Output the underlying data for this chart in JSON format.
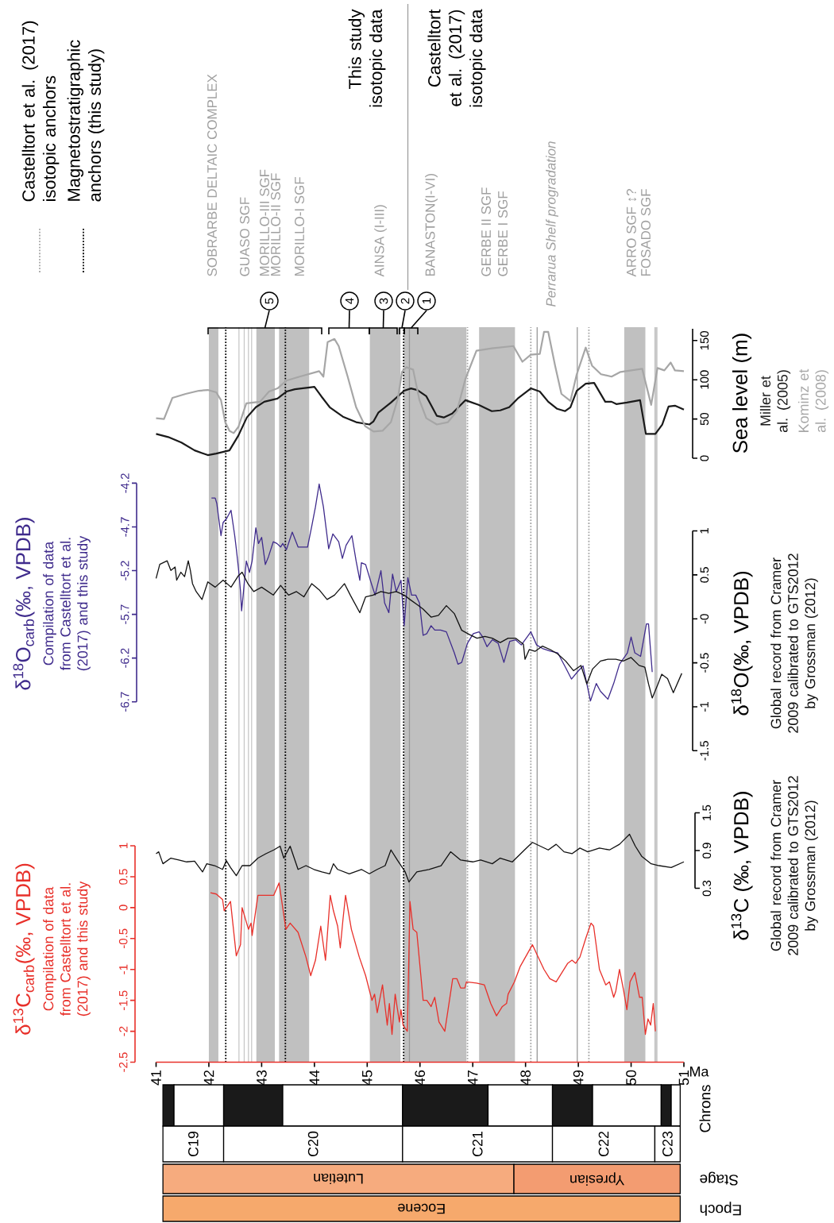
{
  "chart_data": [
    {
      "type": "line",
      "ylabel": "Sea level (m)",
      "xlim": [
        41,
        51
      ],
      "ylim": [
        0,
        165
      ],
      "yticks": [
        0,
        50,
        100,
        150
      ],
      "tick_labels": "y",
      "series": [
        {
          "name": "Miller et al. (2005)",
          "color": "#1a1a1a",
          "x": [
            41.0,
            41.23,
            41.48,
            41.73,
            41.98,
            42.14,
            42.39,
            42.56,
            42.72,
            42.89,
            43.05,
            43.3,
            43.47,
            43.63,
            44.0,
            44.13,
            44.29,
            44.54,
            44.79,
            45.04,
            45.12,
            45.21,
            45.45,
            45.7,
            45.83,
            45.95,
            46.12,
            46.32,
            46.45,
            46.61,
            46.86,
            47.11,
            47.36,
            47.52,
            47.69,
            47.85,
            48.1,
            48.27,
            48.43,
            48.6,
            48.75,
            48.85,
            48.97,
            49.14,
            49.3,
            49.51,
            49.63,
            49.72,
            49.92,
            50.17,
            50.28,
            50.46,
            50.59,
            50.71,
            50.83,
            51.0
          ],
          "values": [
            31,
            27,
            20,
            10,
            4,
            6,
            10,
            29,
            52,
            65,
            72,
            76,
            85,
            88,
            91,
            79,
            65,
            53,
            46,
            43,
            47,
            58,
            71,
            86,
            89,
            87,
            79,
            54,
            52,
            57,
            74,
            68,
            60,
            61,
            65,
            76,
            89,
            85,
            72,
            63,
            60,
            65,
            86,
            95,
            96,
            72,
            72,
            69,
            71,
            74,
            31,
            31,
            43,
            66,
            67,
            62
          ]
        },
        {
          "name": "Kominz et al. (2008)",
          "color": "#a6a6a6",
          "x": [
            41.0,
            41.15,
            41.31,
            41.56,
            41.81,
            41.98,
            42.14,
            42.23,
            42.31,
            42.39,
            42.47,
            42.56,
            42.71,
            42.97,
            43.14,
            43.3,
            43.47,
            43.72,
            44.09,
            44.17,
            44.25,
            44.38,
            44.46,
            44.63,
            44.79,
            44.96,
            45.12,
            45.29,
            45.45,
            45.58,
            45.66,
            45.74,
            45.87,
            45.99,
            46.12,
            46.32,
            46.53,
            46.7,
            46.86,
            47.07,
            47.36,
            47.77,
            47.94,
            48.1,
            48.27,
            48.35,
            48.43,
            48.56,
            48.68,
            48.85,
            48.97,
            49.14,
            49.26,
            49.43,
            49.63,
            49.8,
            50.21,
            50.38,
            50.5,
            50.63,
            50.75,
            50.83,
            51.0
          ],
          "values": [
            51,
            50,
            77,
            82,
            86,
            87,
            84,
            74,
            46,
            35,
            32,
            40,
            70,
            72,
            85,
            89,
            99,
            104,
            111,
            104,
            148,
            152,
            143,
            104,
            65,
            41,
            34,
            35,
            46,
            76,
            110,
            116,
            113,
            74,
            51,
            43,
            46,
            60,
            101,
            137,
            140,
            143,
            123,
            132,
            133,
            161,
            161,
            118,
            82,
            73,
            107,
            141,
            118,
            107,
            104,
            110,
            114,
            68,
            115,
            112,
            122,
            112,
            111
          ]
        }
      ],
      "bands": [
        {
          "axis": "x",
          "from": 42.0,
          "to": 42.18,
          "color": "#c0c0c0"
        },
        {
          "axis": "x",
          "from": 42.9,
          "to": 43.25,
          "color": "#c0c0c0"
        },
        {
          "axis": "x",
          "from": 43.33,
          "to": 43.9,
          "color": "#c0c0c0"
        },
        {
          "axis": "x",
          "from": 45.05,
          "to": 45.63,
          "color": "#c0c0c0"
        },
        {
          "axis": "x",
          "from": 45.7,
          "to": 46.88,
          "color": "#c0c0c0"
        },
        {
          "axis": "x",
          "from": 47.12,
          "to": 47.8,
          "color": "#c0c0c0"
        },
        {
          "axis": "x",
          "from": 49.87,
          "to": 50.27,
          "color": "#c0c0c0"
        },
        {
          "axis": "x",
          "from": 50.44,
          "to": 50.5,
          "color": "#c8c8c8"
        }
      ],
      "ref_lines": [
        {
          "axis": "x",
          "value": 42.32,
          "color": "#000000",
          "line_style": "dotted"
        },
        {
          "axis": "x",
          "value": 43.45,
          "color": "#000000",
          "line_style": "dotted"
        },
        {
          "axis": "x",
          "value": 45.69,
          "color": "#000000",
          "line_style": "dotted"
        },
        {
          "axis": "x",
          "value": 46.9,
          "color": "#a6a6a6",
          "line_style": "dotted"
        },
        {
          "axis": "x",
          "value": 48.1,
          "color": "#a6a6a6",
          "line_style": "dotted"
        },
        {
          "axis": "x",
          "value": 49.2,
          "color": "#a6a6a6",
          "line_style": "dotted"
        },
        {
          "axis": "x",
          "value": 45.8,
          "color": "#999999",
          "line_style": "solid"
        },
        {
          "axis": "x",
          "value": 48.22,
          "color": "#999999",
          "line_style": "solid"
        },
        {
          "axis": "x",
          "value": 48.98,
          "color": "#999999",
          "line_style": "solid"
        },
        {
          "axis": "x",
          "value": 42.57,
          "color": "#c8c8c8",
          "line_style": "solid"
        },
        {
          "axis": "x",
          "value": 42.67,
          "color": "#c8c8c8",
          "line_style": "solid"
        },
        {
          "axis": "x",
          "value": 42.75,
          "color": "#c8c8c8",
          "line_style": "solid"
        },
        {
          "axis": "x",
          "value": 42.81,
          "color": "#c8c8c8",
          "line_style": "solid"
        }
      ],
      "annotations": [
        "Castelltort et al. (2017) isotopic anchors",
        "Magnetostratigraphic anchors (this study)",
        "This study isotopic data",
        "Castelltort et al. (2017) isotopic data",
        "SOBRARBE DELTAIC COMPLEX",
        "GUASO SGF",
        "MORILLO-III SGF",
        "MORILLO-II SGF",
        "MORILLO-I SGF",
        "AINSA (I-III)",
        "BANASTON(I-VI)",
        "GERBE II SGF",
        "GERBE I SGF",
        "Perrarua Shelf progradation",
        "ARRO SGF ↕?",
        "FOSADO SGF",
        "5",
        "4",
        "3",
        "2",
        "1"
      ]
    },
    {
      "type": "line",
      "ylabel": "δ$^{18}$O$_{carb}$(‰, VPDB)",
      "y2label": "δ$^{18}$O(‰, VPDB)",
      "xlim": [
        41,
        51
      ],
      "tick_labels": "y",
      "ylim": [
        -6.7,
        -4.2
      ],
      "yticks": [
        -6.7,
        -6.2,
        -5.7,
        -5.2,
        -4.7,
        -4.2
      ],
      "y2lim": [
        -1.5,
        1
      ],
      "y2ticks": [
        -1.5,
        -1,
        -0.5,
        {
          "value": 0,
          "label": "-0"
        },
        0.5,
        1
      ],
      "bands": [
        {
          "axis": "x",
          "from": 42.0,
          "to": 42.18,
          "color": "#c0c0c0"
        },
        {
          "axis": "x",
          "from": 42.9,
          "to": 43.25,
          "color": "#c0c0c0"
        },
        {
          "axis": "x",
          "from": 43.33,
          "to": 43.9,
          "color": "#c0c0c0"
        },
        {
          "axis": "x",
          "from": 45.05,
          "to": 45.63,
          "color": "#c0c0c0"
        },
        {
          "axis": "x",
          "from": 45.7,
          "to": 46.88,
          "color": "#c0c0c0"
        },
        {
          "axis": "x",
          "from": 47.12,
          "to": 47.8,
          "color": "#c0c0c0"
        },
        {
          "axis": "x",
          "from": 49.87,
          "to": 50.27,
          "color": "#c0c0c0"
        },
        {
          "axis": "x",
          "from": 50.44,
          "to": 50.5,
          "color": "#c8c8c8"
        }
      ],
      "ref_lines": [
        {
          "axis": "x",
          "value": 42.32,
          "color": "#000000",
          "line_style": "dotted"
        },
        {
          "axis": "x",
          "value": 43.45,
          "color": "#000000",
          "line_style": "dotted"
        },
        {
          "axis": "x",
          "value": 45.69,
          "color": "#000000",
          "line_style": "dotted"
        },
        {
          "axis": "x",
          "value": 46.9,
          "color": "#a6a6a6",
          "line_style": "dotted"
        },
        {
          "axis": "x",
          "value": 48.1,
          "color": "#a6a6a6",
          "line_style": "dotted"
        },
        {
          "axis": "x",
          "value": 49.2,
          "color": "#a6a6a6",
          "line_style": "dotted"
        },
        {
          "axis": "x",
          "value": 45.8,
          "color": "#999999",
          "line_style": "solid"
        },
        {
          "axis": "x",
          "value": 48.22,
          "color": "#999999",
          "line_style": "solid"
        },
        {
          "axis": "x",
          "value": 48.98,
          "color": "#999999",
          "line_style": "solid"
        },
        {
          "axis": "x",
          "value": 42.57,
          "color": "#c8c8c8",
          "line_style": "solid"
        },
        {
          "axis": "x",
          "value": 42.67,
          "color": "#c8c8c8",
          "line_style": "solid"
        },
        {
          "axis": "x",
          "value": 42.75,
          "color": "#c8c8c8",
          "line_style": "solid"
        },
        {
          "axis": "x",
          "value": 42.81,
          "color": "#c8c8c8",
          "line_style": "solid"
        }
      ],
      "series": [
        {
          "name": "Compilation of data from Castelltort et al. (2017) and this study",
          "color": "#3f2b8c",
          "axis": "y",
          "x": [
            42.05,
            42.12,
            42.15,
            42.23,
            42.27,
            42.34,
            42.42,
            42.49,
            42.52,
            42.56,
            42.6,
            42.62,
            42.65,
            42.71,
            42.77,
            42.82,
            42.89,
            42.94,
            43.0,
            43.07,
            43.13,
            43.22,
            43.29,
            43.36,
            43.4,
            43.47,
            43.58,
            43.69,
            43.87,
            43.95,
            44.02,
            44.09,
            44.17,
            44.27,
            44.35,
            44.46,
            44.53,
            44.6,
            44.71,
            44.79,
            44.86,
            44.89,
            44.97,
            45.08,
            45.15,
            45.26,
            45.33,
            45.41,
            45.48,
            45.55,
            45.64,
            45.7,
            45.77,
            45.84,
            45.92,
            45.99,
            46.06,
            46.13,
            46.21,
            46.28,
            46.39,
            46.5,
            46.65,
            46.72,
            46.79,
            46.9,
            47.01,
            47.12,
            47.19,
            47.27,
            47.37,
            47.48,
            47.59,
            47.7,
            47.81,
            47.92,
            48.03,
            48.1,
            48.21,
            48.32,
            48.47,
            48.61,
            48.76,
            48.87,
            48.98,
            49.09,
            49.16,
            49.23,
            49.34,
            49.42,
            49.56,
            49.67,
            49.78,
            49.93,
            50.0,
            50.07,
            50.18,
            50.29,
            50.33,
            50.4
          ],
          "values": [
            -4.37,
            -4.37,
            -4.43,
            -4.8,
            -4.65,
            -4.6,
            -4.51,
            -4.8,
            -4.95,
            -5.17,
            -5.44,
            -5.66,
            -5.48,
            -5.09,
            -5.22,
            -5.09,
            -4.71,
            -4.89,
            -4.82,
            -5.13,
            -5.04,
            -4.87,
            -4.89,
            -4.93,
            -4.89,
            -4.96,
            -4.76,
            -4.93,
            -4.93,
            -4.69,
            -4.47,
            -4.21,
            -4.47,
            -4.95,
            -4.78,
            -4.87,
            -5.06,
            -4.91,
            -4.8,
            -5.09,
            -5.31,
            -5.11,
            -5.13,
            -5.35,
            -5.48,
            -5.2,
            -5.57,
            -5.68,
            -5.24,
            -5.44,
            -5.31,
            -5.83,
            -5.28,
            -5.48,
            -5.48,
            -5.57,
            -5.94,
            -5.92,
            -5.83,
            -5.88,
            -5.88,
            -5.9,
            -6.14,
            -6.27,
            -6.25,
            -6.03,
            -5.92,
            -5.9,
            -5.96,
            -6.07,
            -5.99,
            -6.03,
            -6.25,
            -6.01,
            -5.99,
            -6.05,
            -5.96,
            -5.9,
            -6.05,
            -6.09,
            -6.12,
            -6.14,
            -6.31,
            -6.44,
            -6.36,
            -6.29,
            -6.49,
            -6.69,
            -6.49,
            -6.58,
            -6.67,
            -6.49,
            -6.27,
            -6.14,
            -5.96,
            -6.14,
            -6.18,
            -5.81,
            -5.81,
            -6.36
          ]
        },
        {
          "name": "Global record from Cramer 2009 calibrated to GTS2012 by Grossman (2012)",
          "color": "#111111",
          "axis": "y2",
          "x": [
            41.0,
            41.07,
            41.14,
            41.21,
            41.28,
            41.36,
            41.39,
            41.47,
            41.54,
            41.61,
            41.65,
            41.69,
            41.76,
            41.87,
            41.98,
            42.12,
            42.27,
            42.42,
            42.56,
            42.63,
            42.74,
            42.85,
            43.0,
            43.22,
            43.36,
            43.51,
            43.66,
            43.8,
            43.95,
            44.09,
            44.24,
            44.38,
            44.57,
            44.68,
            44.86,
            44.97,
            45.11,
            45.26,
            45.41,
            45.55,
            45.7,
            45.81,
            45.95,
            46.06,
            46.21,
            46.35,
            46.5,
            46.65,
            46.79,
            46.94,
            47.08,
            47.23,
            47.37,
            47.52,
            47.67,
            47.81,
            47.96,
            47.99,
            48.07,
            48.18,
            48.32,
            48.47,
            48.61,
            48.76,
            48.91,
            49.05,
            49.16,
            49.27,
            49.42,
            49.56,
            49.71,
            49.85,
            50.0,
            50.15,
            50.26,
            50.33,
            50.4,
            50.51,
            50.58,
            50.69,
            50.8,
            50.96
          ],
          "values": [
            0.46,
            0.62,
            0.64,
            0.66,
            0.55,
            0.59,
            0.44,
            0.53,
            0.48,
            0.66,
            0.55,
            0.4,
            0.31,
            0.22,
            0.42,
            0.36,
            0.44,
            0.36,
            0.49,
            0.53,
            0.4,
            0.31,
            0.36,
            0.27,
            0.38,
            0.27,
            0.31,
            0.25,
            0.4,
            0.33,
            0.22,
            0.27,
            0.4,
            0.27,
            0.07,
            0.25,
            0.27,
            0.31,
            0.29,
            0.31,
            0.27,
            0.22,
            0.16,
            0.11,
            0.02,
            0.04,
            0.15,
            0.06,
            -0.13,
            -0.18,
            -0.22,
            -0.2,
            -0.22,
            -0.27,
            -0.22,
            -0.22,
            -0.29,
            -0.46,
            -0.35,
            -0.37,
            -0.31,
            -0.35,
            -0.4,
            -0.48,
            -0.59,
            -0.53,
            -0.74,
            -0.57,
            -0.48,
            -0.46,
            -0.46,
            -0.48,
            -0.44,
            -0.53,
            -0.55,
            -0.74,
            -0.9,
            -0.74,
            -0.63,
            -0.68,
            -0.84,
            -0.62
          ]
        }
      ]
    },
    {
      "type": "line",
      "ylabel": "δ$^{13}$C$_{carb}$(‰, VPDB)",
      "xlabel": "Ma",
      "xlim": [
        41,
        51
      ],
      "xticks": [
        41,
        42,
        43,
        44,
        45,
        46,
        47,
        48,
        49,
        50,
        51
      ],
      "ylim": [
        -2.5,
        1
      ],
      "yticks": [
        -2.5,
        -2,
        -1.5,
        -1,
        -0.5,
        0,
        0.5,
        1
      ],
      "bands": [
        {
          "axis": "x",
          "from": 42.0,
          "to": 42.18,
          "color": "#c0c0c0"
        },
        {
          "axis": "x",
          "from": 42.9,
          "to": 43.25,
          "color": "#c0c0c0"
        },
        {
          "axis": "x",
          "from": 43.33,
          "to": 43.9,
          "color": "#c0c0c0"
        },
        {
          "axis": "x",
          "from": 45.05,
          "to": 45.63,
          "color": "#c0c0c0"
        },
        {
          "axis": "x",
          "from": 45.7,
          "to": 46.88,
          "color": "#c0c0c0"
        },
        {
          "axis": "x",
          "from": 47.12,
          "to": 47.8,
          "color": "#c0c0c0"
        },
        {
          "axis": "x",
          "from": 49.87,
          "to": 50.27,
          "color": "#c0c0c0"
        },
        {
          "axis": "x",
          "from": 50.44,
          "to": 50.5,
          "color": "#c8c8c8"
        }
      ],
      "ref_lines": [
        {
          "axis": "x",
          "value": 42.32,
          "color": "#000000",
          "line_style": "dotted"
        },
        {
          "axis": "x",
          "value": 43.45,
          "color": "#000000",
          "line_style": "dotted"
        },
        {
          "axis": "x",
          "value": 45.69,
          "color": "#000000",
          "line_style": "dotted"
        },
        {
          "axis": "x",
          "value": 46.9,
          "color": "#a6a6a6",
          "line_style": "dotted"
        },
        {
          "axis": "x",
          "value": 48.1,
          "color": "#a6a6a6",
          "line_style": "dotted"
        },
        {
          "axis": "x",
          "value": 49.2,
          "color": "#a6a6a6",
          "line_style": "dotted"
        },
        {
          "axis": "x",
          "value": 45.8,
          "color": "#999999",
          "line_style": "solid"
        },
        {
          "axis": "x",
          "value": 48.22,
          "color": "#999999",
          "line_style": "solid"
        },
        {
          "axis": "x",
          "value": 48.98,
          "color": "#999999",
          "line_style": "solid"
        },
        {
          "axis": "x",
          "value": 42.57,
          "color": "#c8c8c8",
          "line_style": "solid"
        },
        {
          "axis": "x",
          "value": 42.67,
          "color": "#c8c8c8",
          "line_style": "solid"
        },
        {
          "axis": "x",
          "value": 42.75,
          "color": "#c8c8c8",
          "line_style": "solid"
        },
        {
          "axis": "x",
          "value": 42.81,
          "color": "#c8c8c8",
          "line_style": "solid"
        }
      ],
      "series": [
        {
          "name": "Compilation of data from Castelltort et al. (2017) and this study",
          "color": "#e8302a",
          "axis": "y",
          "x": [
            42.03,
            42.14,
            42.26,
            42.29,
            42.41,
            42.52,
            42.6,
            42.63,
            42.75,
            42.8,
            42.82,
            42.93,
            43.23,
            43.33,
            43.46,
            43.54,
            43.69,
            43.84,
            43.93,
            44.02,
            44.12,
            44.21,
            44.3,
            44.36,
            44.44,
            44.49,
            44.54,
            44.59,
            44.7,
            44.85,
            44.97,
            45.09,
            45.14,
            45.19,
            45.29,
            45.38,
            45.42,
            45.47,
            45.53,
            45.61,
            45.64,
            45.68,
            45.76,
            45.81,
            45.87,
            45.94,
            46.06,
            46.13,
            46.21,
            46.28,
            46.36,
            46.47,
            46.62,
            46.7,
            46.77,
            46.85,
            46.88,
            47.07,
            47.22,
            47.34,
            47.45,
            47.56,
            47.64,
            47.67,
            47.79,
            47.9,
            48.13,
            48.24,
            48.35,
            48.46,
            48.58,
            48.69,
            48.8,
            48.88,
            48.95,
            49.03,
            49.14,
            49.24,
            49.29,
            49.4,
            49.52,
            49.59,
            49.67,
            49.71,
            49.78,
            49.86,
            49.92,
            49.98,
            50.07,
            50.16,
            50.21,
            50.27,
            50.32,
            50.37,
            50.42,
            50.46
          ],
          "values": [
            0.24,
            0.22,
            0.13,
            -0.05,
            0.1,
            -0.78,
            -0.6,
            0,
            -0.35,
            -0.25,
            -0.45,
            0.2,
            0.2,
            0.4,
            -0.35,
            -0.25,
            -0.4,
            -0.8,
            -1.1,
            -0.85,
            -0.3,
            -0.85,
            0.2,
            -0.05,
            -0.3,
            -0.65,
            -0.2,
            0.2,
            -0.35,
            -0.8,
            -1.1,
            -1.5,
            -1.4,
            -1.7,
            -1.25,
            -1.9,
            -1.55,
            -2.05,
            -1.4,
            -1.85,
            -1.65,
            -1.9,
            -2.0,
            0.1,
            -0.35,
            -0.4,
            -1.5,
            -1.5,
            -1.6,
            -1.45,
            -1.85,
            -2.0,
            -1.15,
            -1.15,
            -1.3,
            -1.3,
            -1.2,
            -1.22,
            -1.25,
            -1.55,
            -1.75,
            -1.6,
            -1.55,
            -1.4,
            -1.2,
            -0.95,
            -0.6,
            -0.8,
            -1.0,
            -1.15,
            -1.2,
            -1.05,
            -0.9,
            -0.85,
            -0.9,
            -0.8,
            -0.5,
            -0.25,
            -0.3,
            -1.0,
            -1.25,
            -1.2,
            -1.45,
            -1.35,
            -1.0,
            -1.35,
            -1.65,
            -1.2,
            -1.05,
            -1.45,
            -1.45,
            -2.05,
            -1.8,
            -1.9,
            -1.55,
            -2.0
          ]
        }
      ]
    },
    {
      "type": "line",
      "ylabel": "δ$^{13}$C (‰, VPDB)",
      "xlim": [
        41,
        51
      ],
      "tick_labels": "y",
      "ylim": [
        0.3,
        1.5
      ],
      "yticks": [
        0.3,
        0.9,
        1.5
      ],
      "series": [
        {
          "name": "Global record from Cramer 2009 calibrated to GTS2012 by Grossman (2012)",
          "color": "#111111",
          "x": [
            41.0,
            41.05,
            41.13,
            41.28,
            41.43,
            41.58,
            41.73,
            41.88,
            41.96,
            42.11,
            42.26,
            42.33,
            42.41,
            42.52,
            42.63,
            42.78,
            42.93,
            43.08,
            43.23,
            43.35,
            43.42,
            43.54,
            43.69,
            43.84,
            43.99,
            44.14,
            44.29,
            44.36,
            44.44,
            44.66,
            44.89,
            45.04,
            45.19,
            45.34,
            45.45,
            45.57,
            45.72,
            45.79,
            45.94,
            46.17,
            46.4,
            46.58,
            46.77,
            47.0,
            47.15,
            47.37,
            47.52,
            47.75,
            47.98,
            48.13,
            48.28,
            48.43,
            48.58,
            48.73,
            48.88,
            49.03,
            49.18,
            49.4,
            49.59,
            49.78,
            49.97,
            50.08,
            50.2,
            50.38,
            50.53,
            50.76,
            51.0
          ],
          "values": [
            0.85,
            0.88,
            0.69,
            0.78,
            0.75,
            0.72,
            0.73,
            0.56,
            0.69,
            0.66,
            0.6,
            0.74,
            0.63,
            0.5,
            0.66,
            0.66,
            0.78,
            0.85,
            0.91,
            0.97,
            0.78,
            0.97,
            0.6,
            0.66,
            0.6,
            0.56,
            0.53,
            0.69,
            0.6,
            0.53,
            0.6,
            0.53,
            0.6,
            0.66,
            0.91,
            0.75,
            0.56,
            0.4,
            0.56,
            0.6,
            0.66,
            0.88,
            0.75,
            0.72,
            0.75,
            0.69,
            0.78,
            0.72,
            0.91,
            1.03,
            0.97,
            0.91,
            1.0,
            0.88,
            0.85,
            0.94,
            0.88,
            0.94,
            0.91,
            1.0,
            1.16,
            0.97,
            0.81,
            0.69,
            0.66,
            0.63,
            0.72
          ]
        }
      ]
    },
    {
      "type": "bar",
      "orientation": "horizontal",
      "xlim": [
        41,
        51
      ],
      "tick_labels": "y",
      "categories": [
        "Chrons"
      ],
      "series": [
        {
          "color": "#1a1a1a",
          "values": [
            0.21
          ],
          "base": [
            41.13
          ]
        },
        {
          "color": "#ffffff",
          "values": [
            0.94
          ],
          "base": [
            41.34
          ]
        },
        {
          "color": "#1a1a1a",
          "values": [
            1.12
          ],
          "base": [
            42.28
          ]
        },
        {
          "color": "#ffffff",
          "values": [
            2.27
          ],
          "base": [
            43.4
          ]
        },
        {
          "color": "#1a1a1a",
          "values": [
            1.62
          ],
          "base": [
            45.67
          ]
        },
        {
          "color": "#ffffff",
          "values": [
            1.22
          ],
          "base": [
            47.29
          ]
        },
        {
          "color": "#1a1a1a",
          "values": [
            0.76
          ],
          "base": [
            48.51
          ]
        },
        {
          "color": "#ffffff",
          "values": [
            1.3
          ],
          "base": [
            49.27
          ]
        },
        {
          "color": "#1a1a1a",
          "values": [
            0.19
          ],
          "base": [
            50.57
          ]
        },
        {
          "color": "#ffffff",
          "values": [
            0.17
          ],
          "base": [
            50.76
          ]
        }
      ]
    },
    {
      "type": "bar",
      "orientation": "horizontal",
      "xlim": [
        41,
        51
      ],
      "tick_labels": "y",
      "categories": [
        null,
        "Stage",
        "Epoch"
      ],
      "series": [
        {
          "name": "C19",
          "color": "#ffffff",
          "values": [
            1.15,
            null,
            null
          ],
          "base": [
            41.13,
            null,
            null
          ]
        },
        {
          "name": "C20",
          "color": "#ffffff",
          "values": [
            3.39,
            null,
            null
          ],
          "base": [
            42.28,
            null,
            null
          ]
        },
        {
          "name": "C21",
          "color": "#ffffff",
          "values": [
            2.84,
            null,
            null
          ],
          "base": [
            45.67,
            null,
            null
          ]
        },
        {
          "name": "C22",
          "color": "#ffffff",
          "values": [
            1.94,
            null,
            null
          ],
          "base": [
            48.51,
            null,
            null
          ]
        },
        {
          "name": "C23",
          "color": "#ffffff",
          "values": [
            0.48,
            null,
            null
          ],
          "base": [
            50.45,
            null,
            null
          ]
        },
        {
          "name": "Lutetian",
          "color": "#f6ab7e",
          "values": [
            null,
            6.65,
            null
          ],
          "base": [
            null,
            41.13,
            null
          ]
        },
        {
          "name": "Ypresian",
          "color": "#f39c71",
          "values": [
            null,
            3.15,
            null
          ],
          "base": [
            null,
            47.78,
            null
          ]
        },
        {
          "name": "Eocene",
          "color": "#f6a96c",
          "values": [
            null,
            null,
            9.8
          ],
          "base": [
            null,
            null,
            41.13
          ]
        }
      ]
    }
  ]
}
